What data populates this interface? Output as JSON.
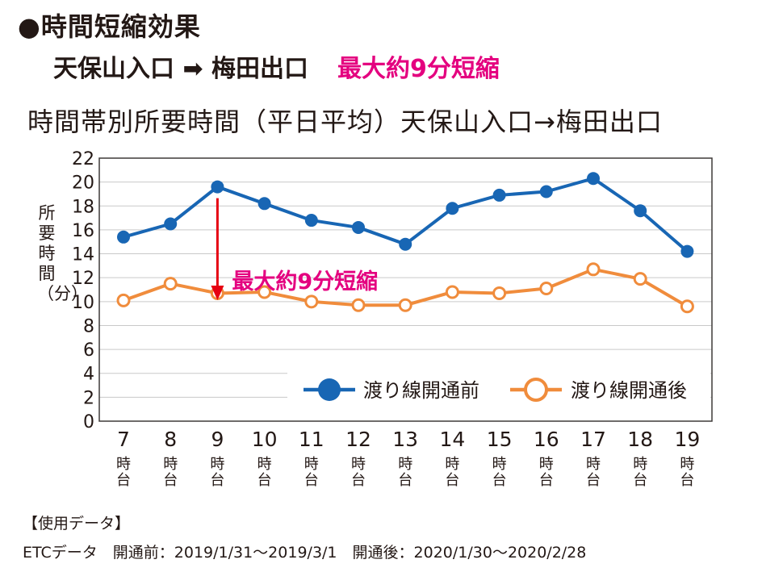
{
  "header": {
    "title": "●時間短縮効果",
    "route": "天保山入口 ➡ 梅田出口",
    "highlight": "最大約9分短縮"
  },
  "chart_data": {
    "type": "line",
    "title": "時間帯別所要時間（平日平均）天保山入口→梅田出口",
    "ylabel": "所要時間（分）",
    "ylim": [
      0,
      22
    ],
    "yticks": [
      "0",
      "2",
      "4",
      "6",
      "8",
      "10",
      "12",
      "14",
      "16",
      "18",
      "20",
      "22"
    ],
    "grid": true,
    "legend": "bottom-right",
    "categories": [
      "7",
      "8",
      "9",
      "10",
      "11",
      "12",
      "13",
      "14",
      "15",
      "16",
      "17",
      "18",
      "19"
    ],
    "category_suffix": "時台",
    "series": [
      {
        "name": "渡り線開通前",
        "color": "#1866b4",
        "marker": "filled",
        "values": [
          15.4,
          16.5,
          19.6,
          18.2,
          16.8,
          16.2,
          14.8,
          17.8,
          18.9,
          19.2,
          20.3,
          17.6,
          14.2
        ]
      },
      {
        "name": "渡り線開通後",
        "color": "#f08c3c",
        "marker": "hollow",
        "values": [
          10.1,
          11.5,
          10.7,
          10.8,
          10.0,
          9.7,
          9.7,
          10.8,
          10.7,
          11.1,
          12.7,
          11.9,
          9.6
        ]
      }
    ],
    "annotation": {
      "text": "最大約9分短縮",
      "category": "9",
      "from": 19.6,
      "to": 11.2,
      "color": "#e4007f",
      "arrow_color": "#e60012"
    }
  },
  "usage": {
    "heading": "【使用データ】",
    "text": "ETCデータ　開通前：2019/1/31〜2019/3/1　開通後：2020/1/30〜2020/2/28"
  }
}
